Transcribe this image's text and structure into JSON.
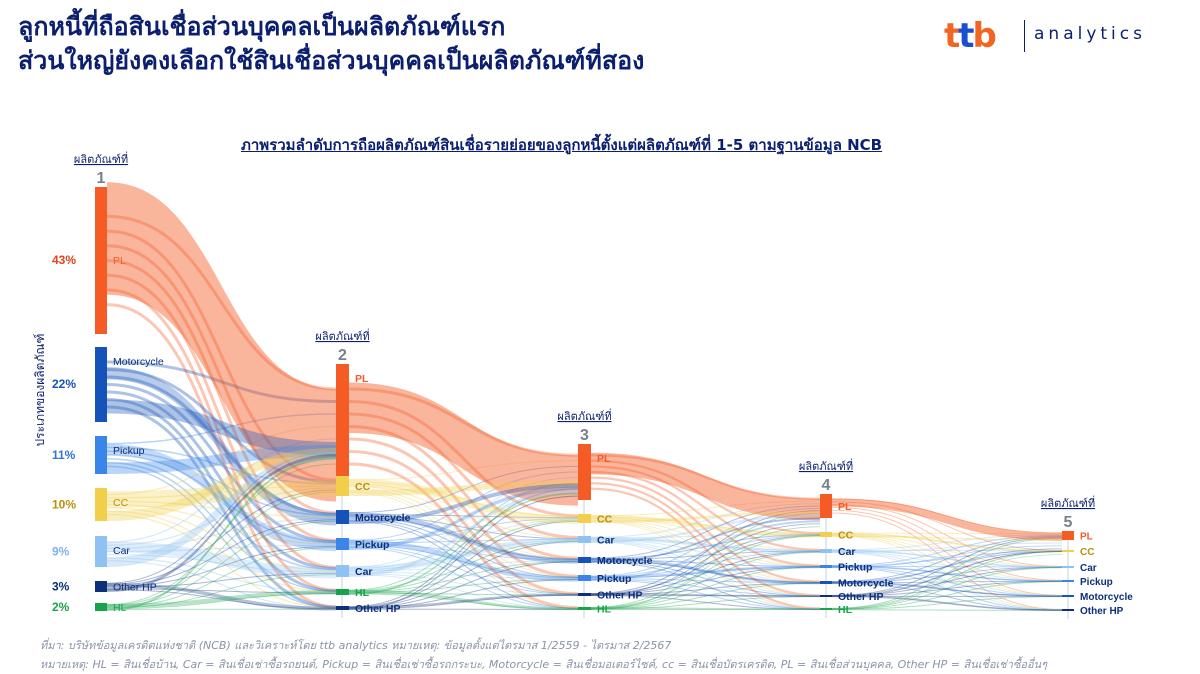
{
  "title": {
    "line1": "ลูกหนี้ที่ถือสินเชื่อส่วนบุคคลเป็นผลิตภัณฑ์แรก",
    "line2": "ส่วนใหญ่ยังคงเลือกใช้สินเชื่อส่วนบุคคลเป็นผลิตภัณฑ์ที่สอง"
  },
  "logo": {
    "brand": "ttb",
    "product": "analytics"
  },
  "subtitle": "ภาพรวมลำดับการถือผลิตภัณฑ์สินเชื่อรายย่อยของลูกหนี้ตั้งแต่ผลิตภัณฑ์ที่ 1-5 ตามฐานข้อมูล NCB",
  "footer": {
    "source": "ที่มา: บริษัทข้อมูลเครดิตแห่งชาติ (NCB) และวิเคราะห์โดย ttb analytics  หมายเหตุ: ข้อมูลตั้งแต่ไตรมาส 1/2559 - ไตรมาส 2/2567",
    "note": "หมายเหตุ:  HL = สินเชื่อบ้าน, Car = สินเชื่อเช่าซื้อรถยนต์, Pickup = สินเชื่อเช่าซื้อรถกระบะ, Motorcycle = สินเชื่อมอเตอร์ไซค์, cc = สินเชื่อบัตรเครดิต, PL = สินเชื่อส่วนบุคคล, Other HP = สินเชื่อเช่าซื้ออื่นๆ"
  },
  "chart_data": {
    "type": "sankey",
    "y_axis_label": "ประเภทของผลิตภัณฑ์",
    "stage_label": "ผลิตภัณฑ์ที่",
    "stages": [
      "1",
      "2",
      "3",
      "4",
      "5"
    ],
    "colors": {
      "PL": "#f45b25",
      "Motorcycle": "#1553b8",
      "Pickup": "#3a86e8",
      "CC": "#f2cf4a",
      "Car": "#8fc2f2",
      "Other HP": "#0c2f7a",
      "HL": "#17a34a"
    },
    "stage1_shares": [
      {
        "name": "PL",
        "share": "43%"
      },
      {
        "name": "Motorcycle",
        "share": "22%"
      },
      {
        "name": "Pickup",
        "share": "11%"
      },
      {
        "name": "CC",
        "share": "10%"
      },
      {
        "name": "Car",
        "share": "9%"
      },
      {
        "name": "Other HP",
        "share": "3%"
      },
      {
        "name": "HL",
        "share": "2%"
      }
    ],
    "stage_orders": [
      [
        "PL",
        "Motorcycle",
        "Pickup",
        "CC",
        "Car",
        "Other HP",
        "HL"
      ],
      [
        "PL",
        "CC",
        "Motorcycle",
        "Pickup",
        "Car",
        "HL",
        "Other HP"
      ],
      [
        "PL",
        "CC",
        "Car",
        "Motorcycle",
        "Pickup",
        "Other HP",
        "HL"
      ],
      [
        "PL",
        "CC",
        "Car",
        "Pickup",
        "Motorcycle",
        "Other HP",
        "HL"
      ],
      [
        "PL",
        "CC",
        "Car",
        "Pickup",
        "Motorcycle",
        "Other HP"
      ]
    ]
  }
}
